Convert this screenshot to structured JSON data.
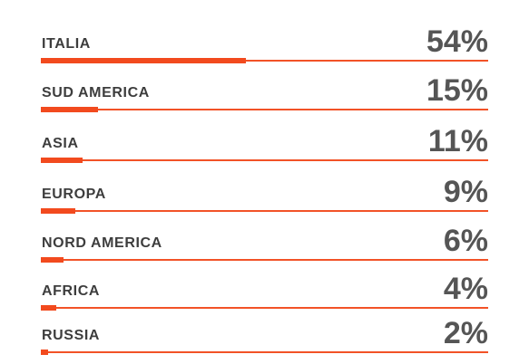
{
  "chart_data": {
    "type": "bar",
    "orientation": "horizontal",
    "categories": [
      "ITALIA",
      "SUD AMERICA",
      "ASIA",
      "EUROPA",
      "NORD AMERICA",
      "AFRICA",
      "RUSSIA"
    ],
    "values": [
      54,
      15,
      11,
      9,
      6,
      4,
      2
    ],
    "value_labels": [
      "54%",
      "15%",
      "11%",
      "9%",
      "6%",
      "4%",
      "2%"
    ],
    "unit": "%",
    "xlim": [
      0,
      118
    ],
    "grid": false,
    "legend": "none"
  },
  "colors": {
    "bar": "#f24a1e",
    "track": "#f25227",
    "label_text": "#3d3d3d",
    "value_text": "#555555"
  }
}
